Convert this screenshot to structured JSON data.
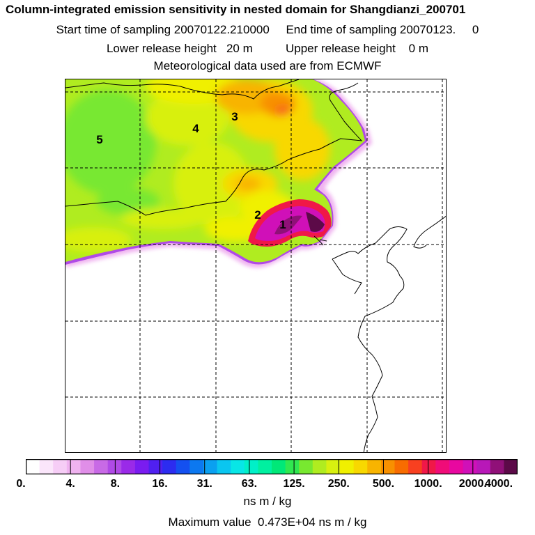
{
  "title": "Column-integrated emission sensitivity in nested domain for Shangdianzi_200701",
  "line2": "Start time of sampling 20070122.210000     End time of sampling 20070123.     0",
  "line3": "Lower release height   20 m          Upper release height    0 m",
  "line4": "Meteorological data used are from ECMWF",
  "map": {
    "region_labels": [
      "1",
      "2",
      "3",
      "4",
      "5"
    ],
    "grid": "dashed"
  },
  "colorbar": {
    "colors": [
      "#ffffff",
      "#fbe6fb",
      "#f6cdf6",
      "#f0b3f0",
      "#e08ee8",
      "#c86ae6",
      "#b04ae6",
      "#9a2ae8",
      "#7a1cf0",
      "#5020f0",
      "#2c2cf0",
      "#1450f0",
      "#0c78f0",
      "#0aa0f0",
      "#0ac6f0",
      "#08e6e6",
      "#00f0c8",
      "#00f0a0",
      "#00e878",
      "#30e850",
      "#78e830",
      "#b0ec20",
      "#d8f010",
      "#f0f000",
      "#f8d800",
      "#f8b400",
      "#f89000",
      "#f86c00",
      "#f84020",
      "#f01848",
      "#f00c78",
      "#e808a0",
      "#d010b8",
      "#b818b8",
      "#901078",
      "#5c0a48"
    ],
    "tick_labels": [
      "0.",
      "4.",
      "8.",
      "16.",
      "31.",
      "63.",
      "125.",
      "250.",
      "500.",
      "1000.",
      "2000.",
      "4000."
    ],
    "units": "ns m / kg"
  },
  "max_value_text": "Maximum value  0.473E+04 ns m / kg"
}
